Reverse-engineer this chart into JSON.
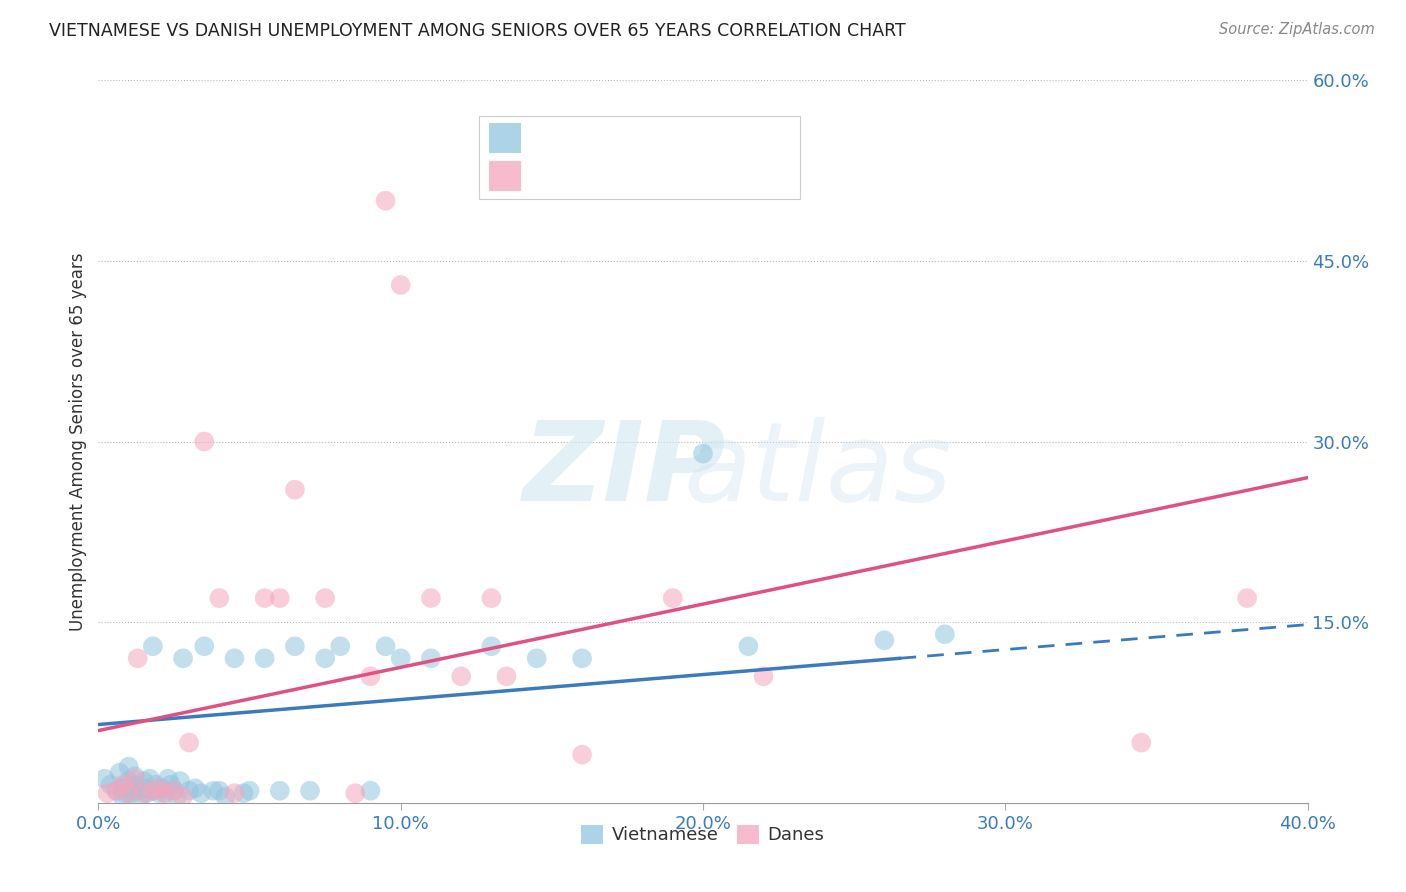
{
  "title": "VIETNAMESE VS DANISH UNEMPLOYMENT AMONG SENIORS OVER 65 YEARS CORRELATION CHART",
  "source": "Source: ZipAtlas.com",
  "ylabel": "Unemployment Among Seniors over 65 years",
  "xmin": 0.0,
  "xmax": 0.4,
  "ymin": 0.0,
  "ymax": 0.6,
  "x_ticks": [
    0.0,
    0.1,
    0.2,
    0.3,
    0.4
  ],
  "x_tick_labels": [
    "0.0%",
    "10.0%",
    "20.0%",
    "30.0%",
    "40.0%"
  ],
  "y_ticks_right": [
    0.0,
    0.15,
    0.3,
    0.45,
    0.6
  ],
  "y_tick_labels_right": [
    "",
    "15.0%",
    "30.0%",
    "45.0%",
    "60.0%"
  ],
  "blue_color": "#92c5de",
  "pink_color": "#f4a6bd",
  "blue_line_color": "#3a7bbf",
  "pink_line_color": "#e05080",
  "blue_scatter_x": [
    0.002,
    0.004,
    0.006,
    0.007,
    0.008,
    0.008,
    0.009,
    0.01,
    0.01,
    0.011,
    0.012,
    0.012,
    0.013,
    0.014,
    0.015,
    0.015,
    0.016,
    0.017,
    0.018,
    0.018,
    0.019,
    0.02,
    0.021,
    0.022,
    0.023,
    0.024,
    0.025,
    0.026,
    0.027,
    0.028,
    0.03,
    0.032,
    0.034,
    0.035,
    0.038,
    0.04,
    0.042,
    0.045,
    0.048,
    0.05,
    0.055,
    0.06,
    0.065,
    0.07,
    0.075,
    0.08,
    0.09,
    0.095,
    0.1,
    0.11,
    0.13,
    0.145,
    0.16,
    0.2,
    0.215,
    0.26,
    0.28
  ],
  "blue_scatter_y": [
    0.02,
    0.015,
    0.01,
    0.025,
    0.005,
    0.012,
    0.008,
    0.018,
    0.03,
    0.008,
    0.015,
    0.022,
    0.01,
    0.005,
    0.012,
    0.018,
    0.008,
    0.02,
    0.01,
    0.13,
    0.015,
    0.008,
    0.012,
    0.008,
    0.02,
    0.015,
    0.01,
    0.005,
    0.018,
    0.12,
    0.01,
    0.012,
    0.008,
    0.13,
    0.01,
    0.01,
    0.005,
    0.12,
    0.008,
    0.01,
    0.12,
    0.01,
    0.13,
    0.01,
    0.12,
    0.13,
    0.01,
    0.13,
    0.12,
    0.12,
    0.13,
    0.12,
    0.12,
    0.29,
    0.13,
    0.135,
    0.14
  ],
  "pink_scatter_x": [
    0.003,
    0.006,
    0.008,
    0.01,
    0.012,
    0.013,
    0.015,
    0.018,
    0.02,
    0.022,
    0.025,
    0.028,
    0.03,
    0.035,
    0.04,
    0.045,
    0.055,
    0.06,
    0.065,
    0.075,
    0.085,
    0.09,
    0.095,
    0.1,
    0.11,
    0.12,
    0.13,
    0.135,
    0.16,
    0.19,
    0.22,
    0.345,
    0.38
  ],
  "pink_scatter_y": [
    0.008,
    0.01,
    0.015,
    0.008,
    0.02,
    0.12,
    0.008,
    0.01,
    0.012,
    0.008,
    0.01,
    0.005,
    0.05,
    0.3,
    0.17,
    0.008,
    0.17,
    0.17,
    0.26,
    0.17,
    0.008,
    0.105,
    0.5,
    0.43,
    0.17,
    0.105,
    0.17,
    0.105,
    0.04,
    0.17,
    0.105,
    0.05,
    0.17
  ],
  "blue_line_x_start": 0.0,
  "blue_line_x_solid_end": 0.265,
  "blue_line_x_end": 0.4,
  "blue_line_y_start": 0.065,
  "blue_line_y_end": 0.148,
  "pink_line_x_start": 0.0,
  "pink_line_x_end": 0.4,
  "pink_line_y_start": 0.06,
  "pink_line_y_end": 0.27
}
